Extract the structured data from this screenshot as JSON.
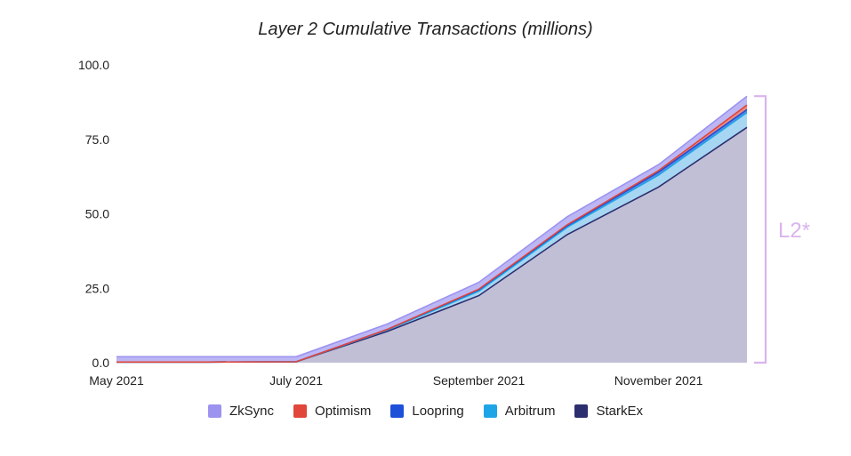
{
  "chart_data": {
    "type": "area",
    "stacked": true,
    "title": "Layer 2 Cumulative Transactions (millions)",
    "xlabel": "",
    "ylabel": "",
    "ylim": [
      0,
      100
    ],
    "yticks": [
      "0.0",
      "25.0",
      "50.0",
      "75.0",
      "100.0"
    ],
    "xticks": [
      "May 2021",
      "July 2021",
      "September 2021",
      "November 2021"
    ],
    "x": [
      "2021-05-01",
      "2021-06-01",
      "2021-07-01",
      "2021-08-01",
      "2021-09-01",
      "2021-10-01",
      "2021-11-01",
      "2021-12-01"
    ],
    "series": [
      {
        "name": "StarkEx",
        "color": "#2c2e6e",
        "values": [
          0.2,
          0.2,
          0.3,
          10.5,
          22.5,
          43.0,
          59.0,
          79.0
        ]
      },
      {
        "name": "Arbitrum",
        "color": "#1ea5e8",
        "values": [
          0.0,
          0.0,
          0.0,
          0.5,
          1.5,
          2.5,
          4.0,
          5.0
        ]
      },
      {
        "name": "Loopring",
        "color": "#1e4fd8",
        "values": [
          0.0,
          0.0,
          0.0,
          0.2,
          0.5,
          0.5,
          1.0,
          1.0
        ]
      },
      {
        "name": "Optimism",
        "color": "#e0463a",
        "values": [
          0.0,
          0.0,
          0.0,
          0.0,
          0.2,
          0.3,
          0.5,
          1.5
        ]
      },
      {
        "name": "ZkSync",
        "color": "#9b93ef",
        "values": [
          1.8,
          1.8,
          1.7,
          1.8,
          2.3,
          2.7,
          2.0,
          3.0
        ]
      }
    ],
    "fills": {
      "StarkEx": "#c1bfd6",
      "Arbitrum": "#a6d6f2",
      "Loopring": "#5f86e6",
      "Optimism": "#e98b84",
      "ZkSync": "#bcb6f4"
    },
    "legend_position": "bottom",
    "legend_order": [
      "ZkSync",
      "Optimism",
      "Loopring",
      "Arbitrum",
      "StarkEx"
    ],
    "grid": false,
    "annotation": {
      "text": "L2*",
      "color": "#d9b3ee"
    }
  }
}
